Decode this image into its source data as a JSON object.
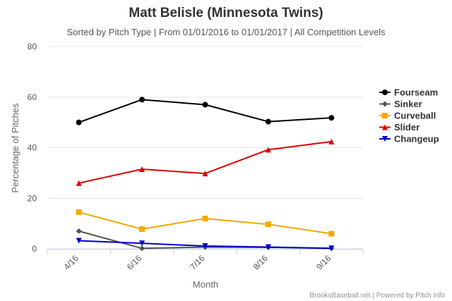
{
  "chart_data": {
    "type": "line",
    "title": "Matt Belisle (Minnesota Twins)",
    "subtitle": "Sorted by Pitch Type | From 01/01/2016 to 01/01/2017 | All Competition Levels",
    "xlabel": "Month",
    "ylabel": "Percentage of Pitches",
    "categories": [
      "4/16",
      "6/16",
      "7/16",
      "8/16",
      "9/16"
    ],
    "ylim": [
      0,
      80
    ],
    "yticks": [
      0,
      20,
      40,
      60,
      80
    ],
    "grid": true,
    "legend_position": "right",
    "series": [
      {
        "name": "Fourseam",
        "color": "#000000",
        "marker": "circle",
        "values": [
          50,
          59,
          57,
          50.3,
          51.8
        ]
      },
      {
        "name": "Sinker",
        "color": "#555555",
        "marker": "diamond",
        "values": [
          7,
          0.2,
          0.7,
          0.6,
          0.2
        ]
      },
      {
        "name": "Curveball",
        "color": "#f5a800",
        "marker": "square",
        "values": [
          14.5,
          7.8,
          12,
          9.7,
          6
        ]
      },
      {
        "name": "Slider",
        "color": "#e00000",
        "marker": "triangle",
        "values": [
          26,
          31.5,
          29.8,
          39.2,
          42.4
        ]
      },
      {
        "name": "Changeup",
        "color": "#0000cc",
        "marker": "triangle-down",
        "values": [
          3.2,
          2.2,
          1.1,
          0.7,
          0.2
        ]
      }
    ],
    "credits": "BrooksBaseball.net | Powered by Pitch Info"
  }
}
